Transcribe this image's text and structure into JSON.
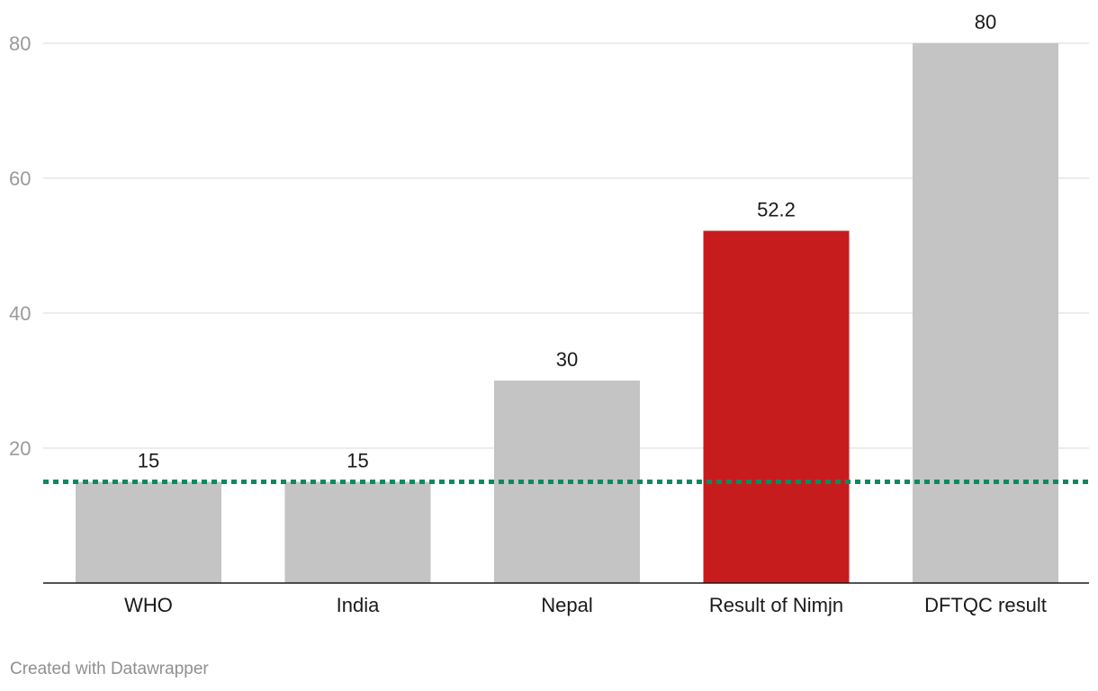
{
  "chart_data": {
    "type": "bar",
    "title": "",
    "xlabel": "",
    "ylabel": "",
    "categories": [
      "WHO",
      "India",
      "Nepal",
      "Result of Nimjn",
      "DFTQC result"
    ],
    "values": [
      15,
      15,
      30,
      52.2,
      80
    ],
    "value_labels": [
      "15",
      "15",
      "30",
      "52.2",
      "80"
    ],
    "bar_colors": [
      "#c4c4c4",
      "#c4c4c4",
      "#c4c4c4",
      "#c71c1e",
      "#c4c4c4"
    ],
    "ylim": [
      0,
      80
    ],
    "yticks": [
      20,
      40,
      60,
      80
    ],
    "ytick_labels": [
      "20",
      "40",
      "60",
      "80"
    ],
    "grid": true,
    "legend": "none",
    "reference_line": {
      "value": 15,
      "style": "dotted",
      "color": "#0a8a60"
    }
  },
  "colors": {
    "gridline": "#e0e0e0",
    "baseline": "#1a1a1a",
    "tick_text": "#9a9a9a",
    "label_text": "#1a1a1a"
  },
  "footer": {
    "credit": "Created with Datawrapper"
  }
}
